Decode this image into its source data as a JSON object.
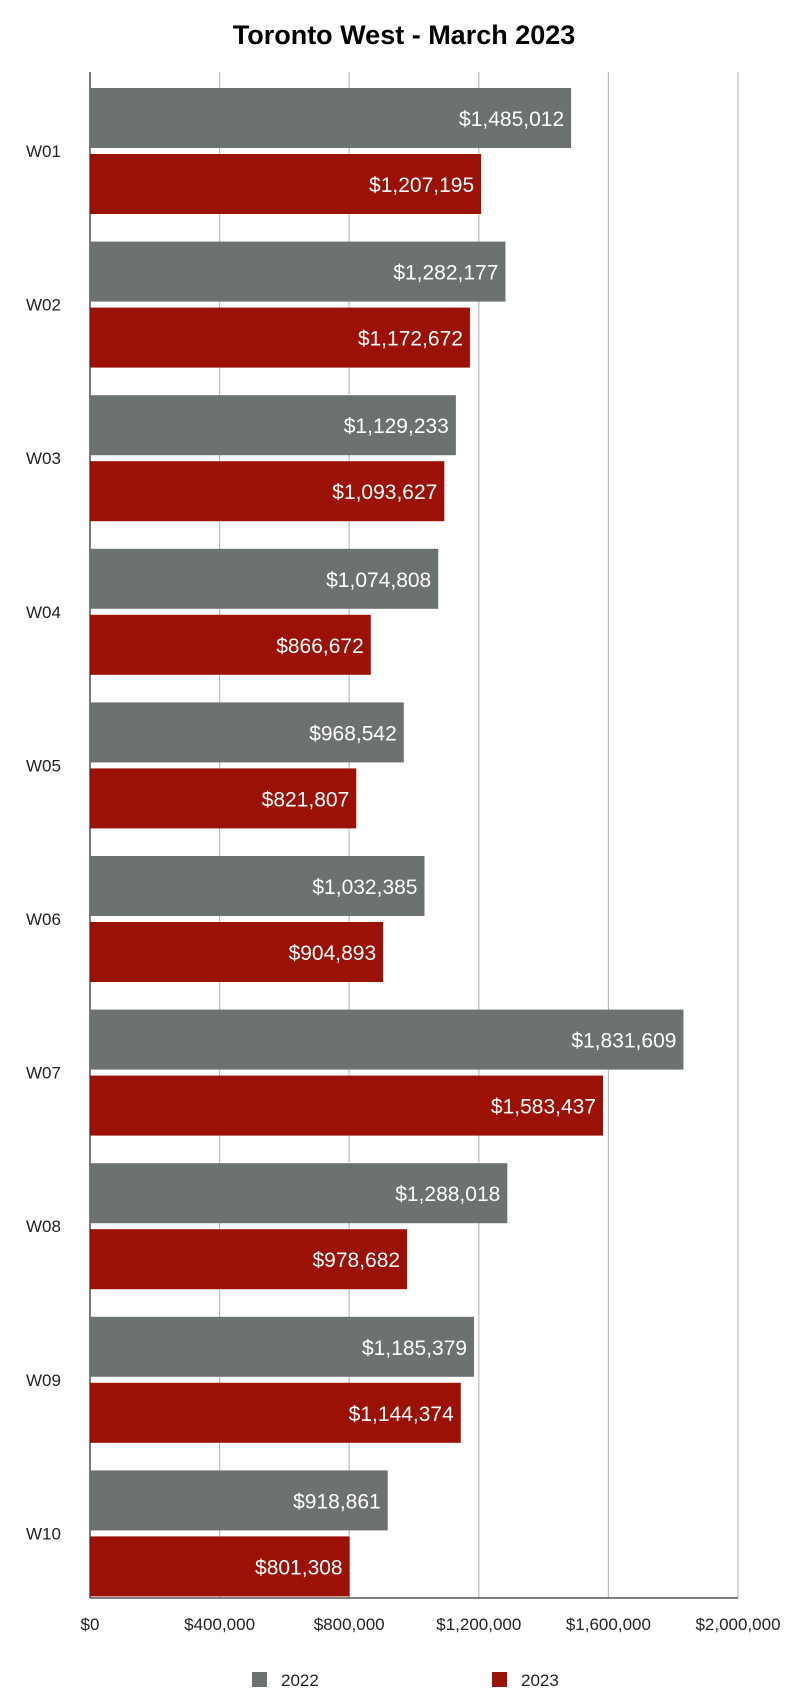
{
  "chart_data": {
    "type": "bar",
    "orientation": "horizontal",
    "title": "Toronto West - March 2023",
    "xlabel": "",
    "ylabel": "",
    "categories": [
      "W01",
      "W02",
      "W03",
      "W04",
      "W05",
      "W06",
      "W07",
      "W08",
      "W09",
      "W10"
    ],
    "series": [
      {
        "name": "2022",
        "color": "#6b726f",
        "values": [
          1485012,
          1282177,
          1129233,
          1074808,
          968542,
          1032385,
          1831609,
          1288018,
          1185379,
          918861
        ],
        "labels": [
          "$1,485,012",
          "$1,282,177",
          "$1,129,233",
          "$1,074,808",
          "$968,542",
          "$1,032,385",
          "$1,831,609",
          "$1,288,018",
          "$1,185,379",
          "$918,861"
        ]
      },
      {
        "name": "2023",
        "color": "#9b1106",
        "values": [
          1207195,
          1172672,
          1093627,
          866672,
          821807,
          904893,
          1583437,
          978682,
          1144374,
          801308
        ],
        "labels": [
          "$1,207,195",
          "$1,172,672",
          "$1,093,627",
          "$866,672",
          "$821,807",
          "$904,893",
          "$1,583,437",
          "$978,682",
          "$1,144,374",
          "$801,308"
        ]
      }
    ],
    "xlim": [
      0,
      2000000
    ],
    "ticks": [
      0,
      400000,
      800000,
      1200000,
      1600000,
      2000000
    ],
    "tick_labels": [
      "$0",
      "$400,000",
      "$800,000",
      "$1,200,000",
      "$1,600,000",
      "$2,000,000"
    ],
    "grid": true,
    "grid_color": "#bdbdbd",
    "legend_position": "bottom"
  }
}
